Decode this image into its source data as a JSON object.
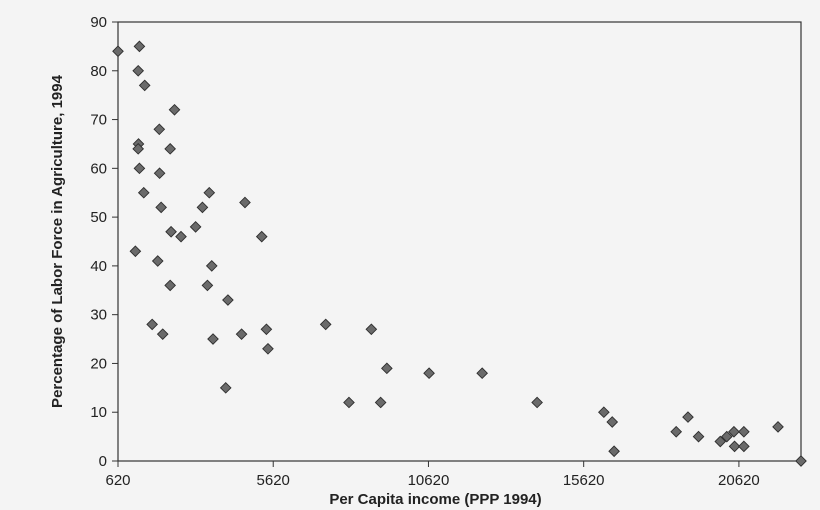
{
  "chart_data": {
    "type": "scatter",
    "title": "",
    "xlabel": "Per Capita income (PPP 1994)",
    "ylabel": "Percentage of Labor Force in Agriculture, 1994",
    "xlim": [
      620,
      22620
    ],
    "ylim": [
      0,
      90
    ],
    "xticks": [
      "620",
      "5620",
      "10620",
      "15620",
      "20620"
    ],
    "yticks": [
      "0",
      "10",
      "20",
      "30",
      "40",
      "50",
      "60",
      "70",
      "80",
      "90"
    ],
    "grid": false,
    "legend": "none",
    "marker": "diamond",
    "colors": {
      "marker_fill": "#6a6a6a",
      "marker_stroke": "#2e2e2e",
      "axes": "#333333",
      "background": "#f4f4f4"
    },
    "points": [
      [
        620,
        84
      ],
      [
        1180,
        43
      ],
      [
        1270,
        80
      ],
      [
        1310,
        85
      ],
      [
        1280,
        65
      ],
      [
        1270,
        64
      ],
      [
        1310,
        60
      ],
      [
        1480,
        77
      ],
      [
        1450,
        55
      ],
      [
        1720,
        28
      ],
      [
        1900,
        41
      ],
      [
        1950,
        68
      ],
      [
        1960,
        59
      ],
      [
        2010,
        52
      ],
      [
        2060,
        26
      ],
      [
        2300,
        64
      ],
      [
        2330,
        47
      ],
      [
        2300,
        36
      ],
      [
        2440,
        72
      ],
      [
        2650,
        46
      ],
      [
        3120,
        48
      ],
      [
        3340,
        52
      ],
      [
        3560,
        55
      ],
      [
        3500,
        36
      ],
      [
        3640,
        40
      ],
      [
        3680,
        25
      ],
      [
        4160,
        33
      ],
      [
        4090,
        15
      ],
      [
        4600,
        26
      ],
      [
        4710,
        53
      ],
      [
        5250,
        46
      ],
      [
        5400,
        27
      ],
      [
        5450,
        23
      ],
      [
        7310,
        28
      ],
      [
        8060,
        12
      ],
      [
        8780,
        27
      ],
      [
        9080,
        12
      ],
      [
        9280,
        19
      ],
      [
        10640,
        18
      ],
      [
        12350,
        18
      ],
      [
        14120,
        12
      ],
      [
        16270,
        10
      ],
      [
        16540,
        8
      ],
      [
        16600,
        2
      ],
      [
        18600,
        6
      ],
      [
        18980,
        9
      ],
      [
        19320,
        5
      ],
      [
        20020,
        4
      ],
      [
        20230,
        5
      ],
      [
        20460,
        6
      ],
      [
        20480,
        3
      ],
      [
        20780,
        3
      ],
      [
        20780,
        6
      ],
      [
        21880,
        7
      ],
      [
        22620,
        0
      ]
    ]
  }
}
